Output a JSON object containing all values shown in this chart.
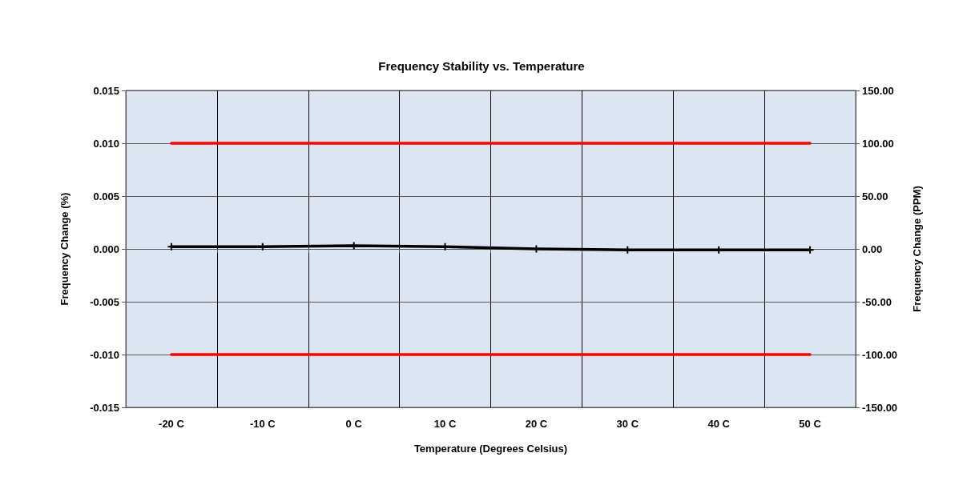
{
  "chart_data": {
    "type": "line",
    "title": "Frequency Stability vs. Temperature",
    "xlabel": "Temperature (Degrees Celsius)",
    "ylabel": "Frequency Change (%)",
    "y2label": "Frequency Change (PPM)",
    "categories": [
      "-20 C",
      "-10 C",
      "0 C",
      "10 C",
      "20 C",
      "30 C",
      "40 C",
      "50 C"
    ],
    "series": [
      {
        "color": "#ff0000",
        "values": [
          0.01,
          0.01,
          0.01,
          0.01,
          0.01,
          0.01,
          0.01,
          0.01
        ],
        "marker": "none"
      },
      {
        "color": "#ff0000",
        "values": [
          -0.01,
          -0.01,
          -0.01,
          -0.01,
          -0.01,
          -0.01,
          -0.01,
          -0.01
        ],
        "marker": "none"
      },
      {
        "color": "#000000",
        "values": [
          0.0002,
          0.0002,
          0.0003,
          0.0002,
          0.0,
          -0.0001,
          -0.0001,
          -0.0001
        ],
        "marker": "cross"
      }
    ],
    "ylim": [
      -0.015,
      0.015
    ],
    "yticks": [
      {
        "value": -0.015,
        "label": "-0.015"
      },
      {
        "value": -0.01,
        "label": "-0.010"
      },
      {
        "value": -0.005,
        "label": "-0.005"
      },
      {
        "value": 0,
        "label": "0.000"
      },
      {
        "value": 0.005,
        "label": "0.005"
      },
      {
        "value": 0.01,
        "label": "0.010"
      },
      {
        "value": 0.015,
        "label": "0.015"
      }
    ],
    "y2lim": [
      -150,
      150
    ],
    "y2ticks": [
      {
        "value": -150,
        "label": "-150.00"
      },
      {
        "value": -100,
        "label": "-100.00"
      },
      {
        "value": -50,
        "label": "-50.00"
      },
      {
        "value": 0,
        "label": "0.00"
      },
      {
        "value": 50,
        "label": "50.00"
      },
      {
        "value": 100,
        "label": "100.00"
      },
      {
        "value": 150,
        "label": "150.00"
      }
    ],
    "grid": true,
    "line_style": "solid"
  }
}
